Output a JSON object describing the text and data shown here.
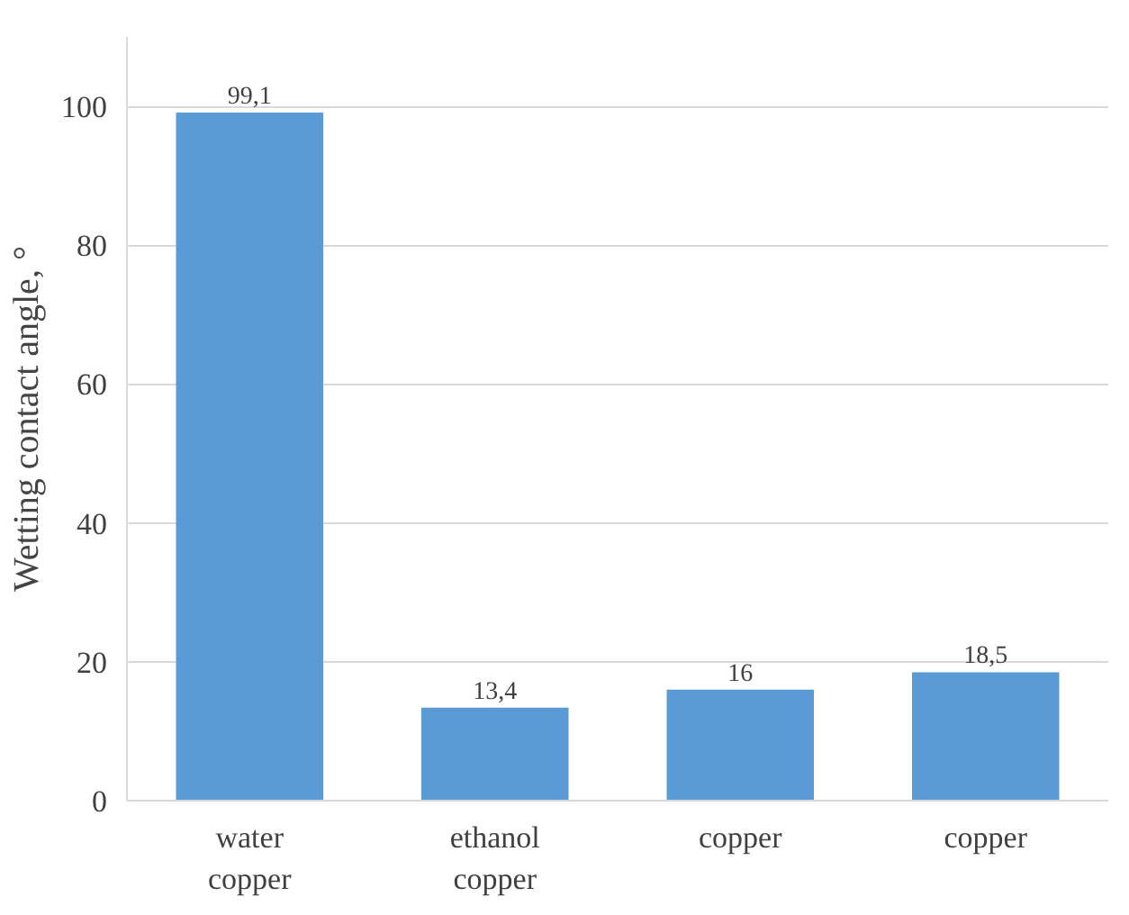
{
  "chart_data": {
    "type": "bar",
    "ylabel": "Wetting contact angle, °",
    "categories": [
      "water\ncopper",
      "ethanol\ncopper",
      "copper",
      "copper"
    ],
    "values": [
      99.1,
      13.4,
      16,
      18.5
    ],
    "value_labels": [
      "99,1",
      "13,4",
      "16",
      "18,5"
    ],
    "color": "#5b9bd5",
    "ylim": [
      0,
      110
    ],
    "yticks": [
      0,
      20,
      40,
      60,
      80,
      100
    ],
    "grid": "y"
  }
}
